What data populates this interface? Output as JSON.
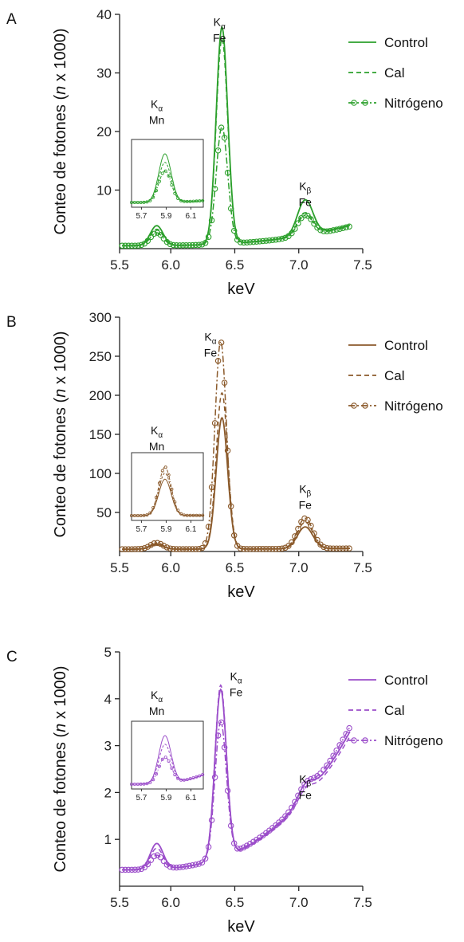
{
  "chart_data": [
    {
      "type": "line",
      "panel_label": "A",
      "ylabel_pre": "Conteo de fotones (",
      "ylabel_italic": "n",
      "ylabel_post": " x 1000)",
      "xlabel": "keV",
      "xlim": [
        5.6,
        7.5
      ],
      "ylim": [
        0,
        40
      ],
      "xticks": [
        "5.5",
        "6.0",
        "6.5",
        "7.0",
        "7.5"
      ],
      "xtick_values": [
        5.5,
        6.0,
        6.5,
        7.0,
        7.5
      ],
      "yticks": [
        "10",
        "20",
        "30",
        "40"
      ],
      "ytick_values": [
        10,
        20,
        30,
        40
      ],
      "legend_position": "top-right",
      "color": "#2ca02c",
      "series": [
        {
          "name": "Control",
          "style": "solid",
          "base": [
            0.5,
            4
          ],
          "peaks": [
            {
              "x": 5.89,
              "h": 3.4,
              "w": 0.05
            },
            {
              "x": 6.4,
              "h": 37.0,
              "w": 0.045
            },
            {
              "x": 7.05,
              "h": 6.0,
              "w": 0.06
            }
          ]
        },
        {
          "name": "Cal",
          "style": "dashed",
          "base": [
            0.5,
            4
          ],
          "peaks": [
            {
              "x": 5.89,
              "h": 2.8,
              "w": 0.05
            },
            {
              "x": 6.4,
              "h": 35.0,
              "w": 0.045
            },
            {
              "x": 7.05,
              "h": 3.8,
              "w": 0.06
            }
          ]
        },
        {
          "name": "Nitrógeno",
          "style": "dashdot-circles",
          "base": [
            0.5,
            3.8
          ],
          "peaks": [
            {
              "x": 5.89,
              "h": 2.2,
              "w": 0.05
            },
            {
              "x": 6.4,
              "h": 20.0,
              "w": 0.045
            },
            {
              "x": 7.05,
              "h": 3.5,
              "w": 0.06
            }
          ]
        }
      ],
      "inset": {
        "xticks": [
          "5.7",
          "5.9",
          "6.1"
        ],
        "xtick_values": [
          5.7,
          5.9,
          6.1
        ],
        "xlim": [
          5.62,
          6.2
        ]
      },
      "annotations": [
        {
          "main": "K",
          "sub": "α",
          "element": "Fe",
          "x": 6.38,
          "y": 38
        },
        {
          "main": "K",
          "sub": "α",
          "element": "Mn",
          "x": 5.89,
          "y": 24
        },
        {
          "main": "K",
          "sub": "β",
          "element": "Fe",
          "x": 7.05,
          "y": 10
        }
      ]
    },
    {
      "type": "line",
      "panel_label": "B",
      "ylabel_pre": "Conteo de fotones (",
      "ylabel_italic": "n",
      "ylabel_post": " x 1000)",
      "xlabel": "keV",
      "xlim": [
        5.6,
        7.5
      ],
      "ylim": [
        0,
        300
      ],
      "xticks": [
        "5.5",
        "6.0",
        "6.5",
        "7.0",
        "7.5"
      ],
      "xtick_values": [
        5.5,
        6.0,
        6.5,
        7.0,
        7.5
      ],
      "yticks": [
        "50",
        "100",
        "150",
        "200",
        "250",
        "300"
      ],
      "ytick_values": [
        50,
        100,
        150,
        200,
        250,
        300
      ],
      "legend_position": "top-right",
      "color": "#8b5a2b",
      "series": [
        {
          "name": "Control",
          "style": "solid",
          "base": [
            3,
            4
          ],
          "peaks": [
            {
              "x": 5.89,
              "h": 6,
              "w": 0.05
            },
            {
              "x": 6.4,
              "h": 168,
              "w": 0.045
            },
            {
              "x": 7.05,
              "h": 28,
              "w": 0.06
            }
          ]
        },
        {
          "name": "Cal",
          "style": "dashed",
          "base": [
            3,
            4
          ],
          "peaks": [
            {
              "x": 5.89,
              "h": 7,
              "w": 0.05
            },
            {
              "x": 6.4,
              "h": 200,
              "w": 0.045
            },
            {
              "x": 7.05,
              "h": 34,
              "w": 0.06
            }
          ]
        },
        {
          "name": "Nitrógeno",
          "style": "dashdot-circles",
          "base": [
            3,
            4
          ],
          "peaks": [
            {
              "x": 5.89,
              "h": 8,
              "w": 0.05
            },
            {
              "x": 6.39,
              "h": 266,
              "w": 0.045
            },
            {
              "x": 7.05,
              "h": 39,
              "w": 0.06
            }
          ]
        }
      ],
      "inset": {
        "xticks": [
          "5.7",
          "5.9",
          "6.1"
        ],
        "xtick_values": [
          5.7,
          5.9,
          6.1
        ],
        "xlim": [
          5.62,
          6.2
        ]
      },
      "annotations": [
        {
          "main": "K",
          "sub": "α",
          "element": "Fe",
          "x": 6.31,
          "y": 270
        },
        {
          "main": "K",
          "sub": "α",
          "element": "Mn",
          "x": 5.89,
          "y": 150
        },
        {
          "main": "K",
          "sub": "β",
          "element": "Fe",
          "x": 7.05,
          "y": 75
        }
      ]
    },
    {
      "type": "line",
      "panel_label": "C",
      "ylabel_pre": "Conteo de fotones (",
      "ylabel_italic": "n",
      "ylabel_post": " x 1000)",
      "xlabel": "keV",
      "xlim": [
        5.6,
        7.5
      ],
      "ylim": [
        0,
        5
      ],
      "xticks": [
        "5.5",
        "6.0",
        "6.5",
        "7.0",
        "7.5"
      ],
      "xtick_values": [
        5.5,
        6.0,
        6.5,
        7.0,
        7.5
      ],
      "yticks": [
        "1",
        "2",
        "3",
        "4",
        "5"
      ],
      "ytick_values": [
        1,
        2,
        3,
        4,
        5
      ],
      "legend_position": "top-right",
      "color": "#9b4dca",
      "series": [
        {
          "name": "Control",
          "style": "solid",
          "base": [
            0.35,
            3.3
          ],
          "peaks": [
            {
              "x": 5.89,
              "h": 0.55,
              "w": 0.05
            },
            {
              "x": 6.39,
              "h": 3.6,
              "w": 0.045
            },
            {
              "x": 7.05,
              "h": 0.3,
              "w": 0.06
            }
          ]
        },
        {
          "name": "Cal",
          "style": "dashed",
          "base": [
            0.35,
            3.2
          ],
          "peaks": [
            {
              "x": 5.89,
              "h": 0.45,
              "w": 0.05
            },
            {
              "x": 6.39,
              "h": 3.7,
              "w": 0.045
            },
            {
              "x": 7.05,
              "h": 0.25,
              "w": 0.06
            }
          ]
        },
        {
          "name": "Nitrógeno",
          "style": "dashdot-circles",
          "base": [
            0.35,
            3.4
          ],
          "peaks": [
            {
              "x": 5.89,
              "h": 0.3,
              "w": 0.05
            },
            {
              "x": 6.39,
              "h": 2.9,
              "w": 0.045
            },
            {
              "x": 7.05,
              "h": 0.25,
              "w": 0.06
            }
          ]
        }
      ],
      "inset": {
        "xticks": [
          "5.7",
          "5.9",
          "6.1"
        ],
        "xtick_values": [
          5.7,
          5.9,
          6.1
        ],
        "xlim": [
          5.62,
          6.2
        ]
      },
      "annotations": [
        {
          "main": "K",
          "sub": "α",
          "element": "Fe",
          "x": 6.51,
          "y": 4.4
        },
        {
          "main": "K",
          "sub": "α",
          "element": "Mn",
          "x": 5.89,
          "y": 4.0
        },
        {
          "main": "K",
          "sub": "β",
          "element": "Fe",
          "x": 7.05,
          "y": 2.2
        }
      ]
    }
  ]
}
